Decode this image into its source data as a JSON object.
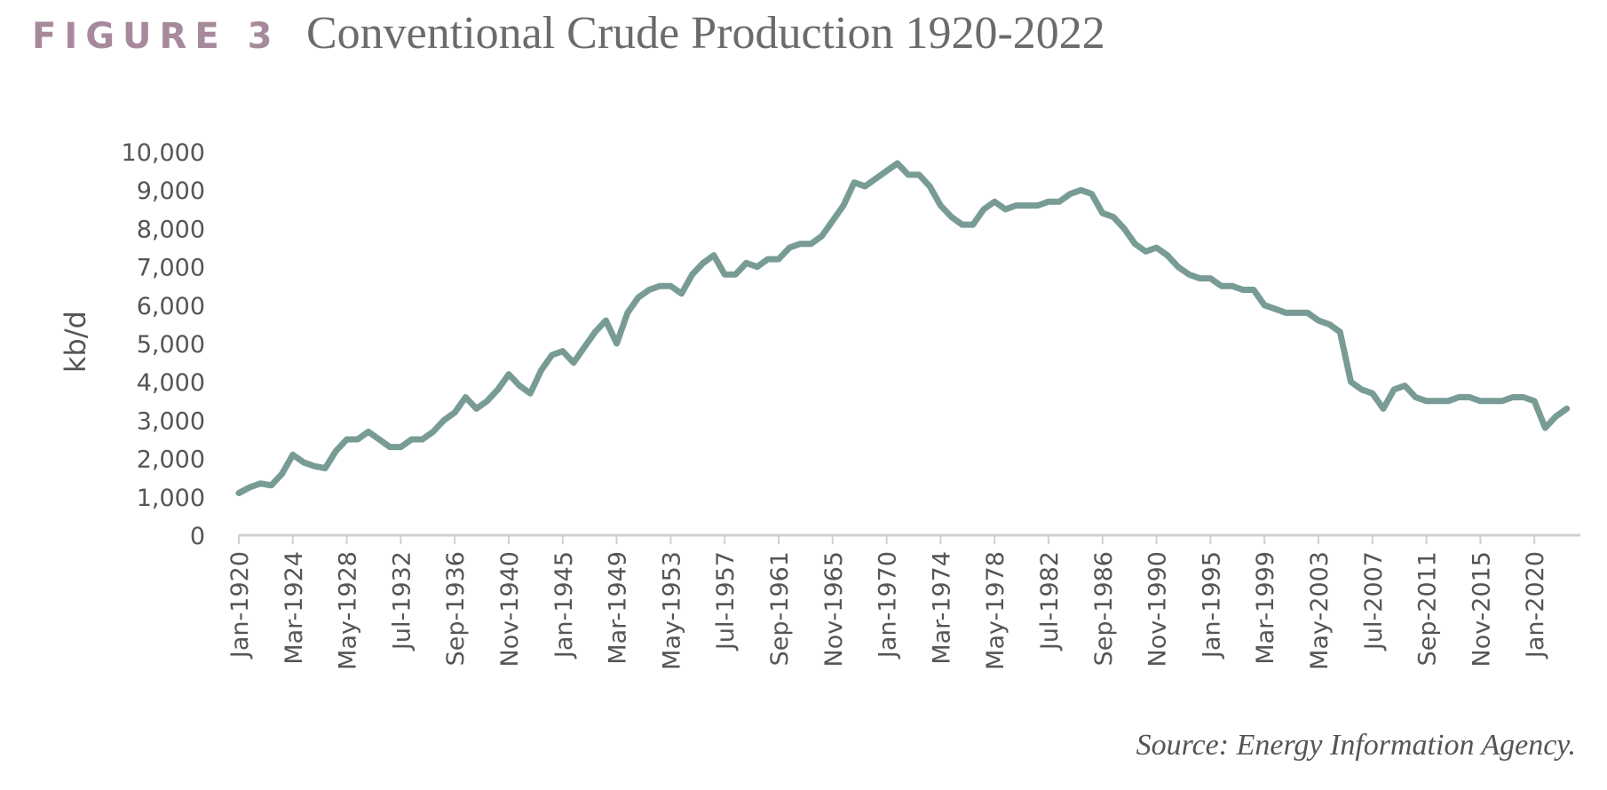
{
  "chart_data": {
    "type": "line",
    "figure_label": "FIGURE 3",
    "title": "Conventional Crude Production 1920-2022",
    "y_label": "kb/d",
    "source": "Source: Energy Information Agency.",
    "categories": [
      "Jan-1920",
      null,
      null,
      null,
      null,
      "Mar-1924",
      null,
      null,
      null,
      null,
      "May-1928",
      null,
      null,
      null,
      null,
      "Jul-1932",
      null,
      null,
      null,
      null,
      "Sep-1936",
      null,
      null,
      null,
      null,
      "Nov-1940",
      null,
      null,
      null,
      null,
      "Jan-1945",
      null,
      null,
      null,
      null,
      "Mar-1949",
      null,
      null,
      null,
      null,
      "May-1953",
      null,
      null,
      null,
      null,
      "Jul-1957",
      null,
      null,
      null,
      null,
      "Sep-1961",
      null,
      null,
      null,
      null,
      "Nov-1965",
      null,
      null,
      null,
      null,
      "Jan-1970",
      null,
      null,
      null,
      null,
      "Mar-1974",
      null,
      null,
      null,
      null,
      "May-1978",
      null,
      null,
      null,
      null,
      "Jul-1982",
      null,
      null,
      null,
      null,
      "Sep-1986",
      null,
      null,
      null,
      null,
      "Nov-1990",
      null,
      null,
      null,
      null,
      "Jan-1995",
      null,
      null,
      null,
      null,
      "Mar-1999",
      null,
      null,
      null,
      null,
      "May-2003",
      null,
      null,
      null,
      null,
      "Jul-2007",
      null,
      null,
      null,
      null,
      "Sep-2011",
      null,
      null,
      null,
      null,
      "Nov-2015",
      null,
      null,
      null,
      null,
      "Jan-2020",
      null,
      null,
      null
    ],
    "series": [
      {
        "name": "Conventional Crude Production",
        "color": "#789c95",
        "values": [
          1100,
          1250,
          1350,
          1300,
          1600,
          2100,
          1900,
          1800,
          1750,
          2200,
          2500,
          2500,
          2700,
          2500,
          2300,
          2300,
          2500,
          2500,
          2700,
          3000,
          3200,
          3600,
          3300,
          3500,
          3800,
          4200,
          3900,
          3700,
          4300,
          4700,
          4800,
          4500,
          4900,
          5300,
          5600,
          5000,
          5800,
          6200,
          6400,
          6500,
          6500,
          6300,
          6800,
          7100,
          7300,
          6800,
          6800,
          7100,
          7000,
          7200,
          7200,
          7500,
          7600,
          7600,
          7800,
          8200,
          8600,
          9200,
          9100,
          9300,
          9500,
          9700,
          9400,
          9400,
          9100,
          8600,
          8300,
          8100,
          8100,
          8500,
          8700,
          8500,
          8600,
          8600,
          8600,
          8700,
          8700,
          8900,
          9000,
          8900,
          8400,
          8300,
          8000,
          7600,
          7400,
          7500,
          7300,
          7000,
          6800,
          6700,
          6700,
          6500,
          6500,
          6400,
          6400,
          6000,
          5900,
          5800,
          5800,
          5800,
          5600,
          5500,
          5300,
          4000,
          3800,
          3700,
          3300,
          3800,
          3900,
          3600,
          3500,
          3500,
          3500,
          3600,
          3600,
          3500,
          3500,
          3500,
          3600,
          3600,
          3500,
          2800,
          3100,
          3300
        ]
      }
    ],
    "ylim": [
      0,
      10000
    ],
    "yticks": [
      0,
      {
        "value": 1000,
        "label": "1,000"
      },
      {
        "value": 2000,
        "label": "2,000"
      },
      {
        "value": 3000,
        "label": "3,000"
      },
      {
        "value": 4000,
        "label": "4,000"
      },
      {
        "value": 5000,
        "label": "5,000"
      },
      {
        "value": 6000,
        "label": "6,000"
      },
      {
        "value": 7000,
        "label": "7,000"
      },
      {
        "value": 8000,
        "label": "8,000"
      },
      {
        "value": 9000,
        "label": "9,000"
      },
      {
        "value": 10000,
        "label": "10,000"
      }
    ],
    "grid": false
  }
}
